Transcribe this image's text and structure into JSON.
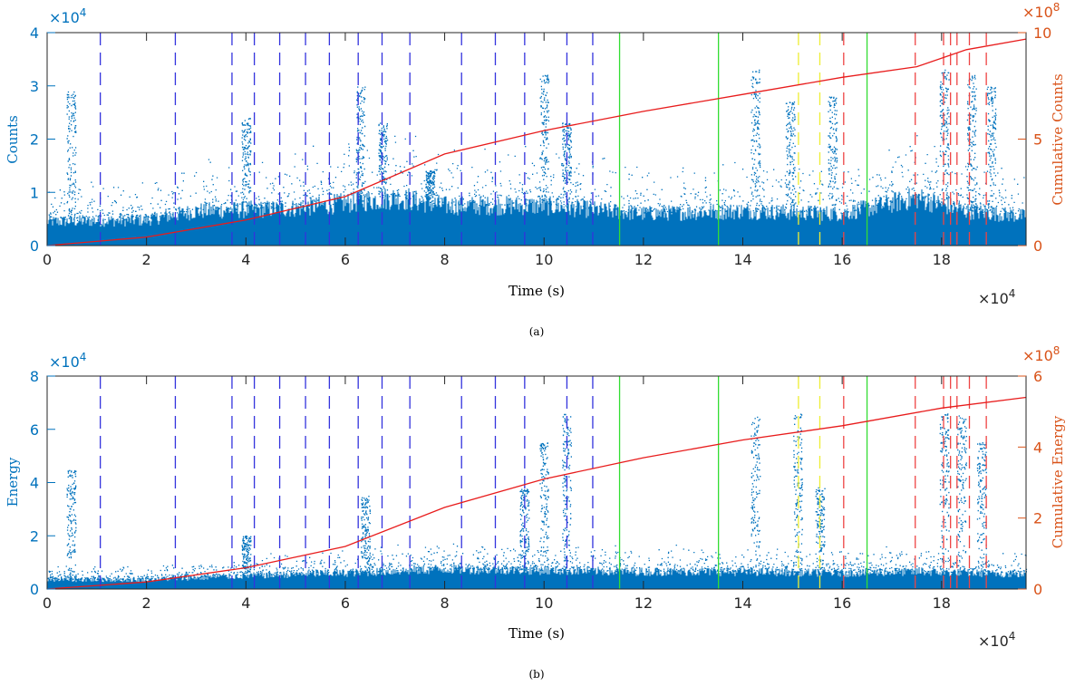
{
  "colors": {
    "left_axis": "#0072BD",
    "right_axis": "#D95319",
    "scatter": "#0072BD",
    "cumulative_line": "#E81C1C",
    "marker_blue": "#3333DD",
    "marker_green": "#33DD33",
    "marker_yellow": "#EEEE33",
    "marker_red": "#EE4444"
  },
  "markers": {
    "blue_dashed_x": [
      10700,
      25800,
      37200,
      41700,
      46800,
      52000,
      56800,
      62600,
      67400,
      73000,
      83400,
      90200,
      96100,
      104600,
      109800
    ],
    "green_solid_x": [
      115200,
      135100,
      165000
    ],
    "yellow_dashed_x": [
      151200,
      155500
    ],
    "red_dashed_x": [
      160300,
      174700,
      180400,
      181800,
      183100,
      185600,
      189000
    ]
  },
  "chart_data": [
    {
      "type": "scatter",
      "caption": "(a)",
      "xlabel": "Time (s)",
      "ylabel": "Counts",
      "y2label": "Cumulative Counts",
      "xlim": [
        0,
        197000
      ],
      "ylim": [
        0,
        40000
      ],
      "y2lim": [
        0,
        1000000000
      ],
      "x_ticks": [
        "0",
        "2",
        "4",
        "6",
        "8",
        "10",
        "12",
        "14",
        "16",
        "18"
      ],
      "x_exponent": "×10",
      "x_exponent_power": "4",
      "y_ticks": [
        "0",
        "1",
        "2",
        "3",
        "4"
      ],
      "y_exponent": "×10",
      "y_exponent_power": "4",
      "y2_ticks": [
        "0",
        "5",
        "10"
      ],
      "y2_exponent": "×10",
      "y2_exponent_power": "8",
      "scatter_base_level": [
        [
          0,
          4500
        ],
        [
          20000,
          4800
        ],
        [
          30000,
          6500
        ],
        [
          50000,
          7000
        ],
        [
          70000,
          9000
        ],
        [
          80000,
          7500
        ],
        [
          100000,
          7500
        ],
        [
          120000,
          6000
        ],
        [
          140000,
          6500
        ],
        [
          160000,
          6000
        ],
        [
          175000,
          9000
        ],
        [
          185000,
          6500
        ],
        [
          197000,
          5500
        ]
      ],
      "scatter_spikes": [
        [
          4800,
          29000
        ],
        [
          40000,
          24000
        ],
        [
          63000,
          30000
        ],
        [
          67500,
          23000
        ],
        [
          77000,
          14000
        ],
        [
          100000,
          32000
        ],
        [
          104500,
          23000
        ],
        [
          142500,
          33000
        ],
        [
          149500,
          27000
        ],
        [
          158000,
          28000
        ],
        [
          180500,
          33000
        ],
        [
          186000,
          32000
        ],
        [
          190000,
          30000
        ]
      ],
      "series": [
        {
          "name": "",
          "x": [
            0,
            20000,
            40000,
            60000,
            80000,
            100000,
            120000,
            140000,
            160000,
            175000,
            185000,
            197000
          ],
          "values": [
            0,
            40000000,
            120000000,
            230000000,
            430000000,
            540000000,
            630000000,
            710000000,
            790000000,
            840000000,
            920000000,
            970000000
          ]
        }
      ]
    },
    {
      "type": "scatter",
      "caption": "(b)",
      "xlabel": "Time (s)",
      "ylabel": "Energy",
      "y2label": "Cumulative Energy",
      "xlim": [
        0,
        197000
      ],
      "ylim": [
        0,
        80000
      ],
      "y2lim": [
        0,
        600000000
      ],
      "x_ticks": [
        "0",
        "2",
        "4",
        "6",
        "8",
        "10",
        "12",
        "14",
        "16",
        "18"
      ],
      "x_exponent": "×10",
      "x_exponent_power": "4",
      "y_ticks": [
        "0",
        "2",
        "4",
        "6",
        "8"
      ],
      "y_exponent": "×10",
      "y_exponent_power": "4",
      "y2_ticks": [
        "0",
        "2",
        "4",
        "6"
      ],
      "y2_exponent": "×10",
      "y2_exponent_power": "8",
      "scatter_base_level": [
        [
          0,
          3500
        ],
        [
          20000,
          3500
        ],
        [
          40000,
          5000
        ],
        [
          60000,
          6000
        ],
        [
          80000,
          7500
        ],
        [
          100000,
          7000
        ],
        [
          120000,
          6500
        ],
        [
          140000,
          6500
        ],
        [
          160000,
          6000
        ],
        [
          175000,
          6500
        ],
        [
          197000,
          5500
        ]
      ],
      "scatter_spikes": [
        [
          4800,
          45000
        ],
        [
          40000,
          20000
        ],
        [
          64000,
          35000
        ],
        [
          96000,
          38000
        ],
        [
          100000,
          55000
        ],
        [
          104500,
          66000
        ],
        [
          142500,
          65000
        ],
        [
          151000,
          66000
        ],
        [
          155500,
          38000
        ],
        [
          180500,
          66000
        ],
        [
          184000,
          65000
        ],
        [
          188000,
          55000
        ]
      ],
      "series": [
        {
          "name": "",
          "x": [
            0,
            20000,
            40000,
            60000,
            80000,
            100000,
            120000,
            140000,
            160000,
            180000,
            197000
          ],
          "values": [
            0,
            20000000,
            60000000,
            120000000,
            230000000,
            310000000,
            370000000,
            420000000,
            460000000,
            510000000,
            540000000
          ]
        }
      ]
    }
  ]
}
